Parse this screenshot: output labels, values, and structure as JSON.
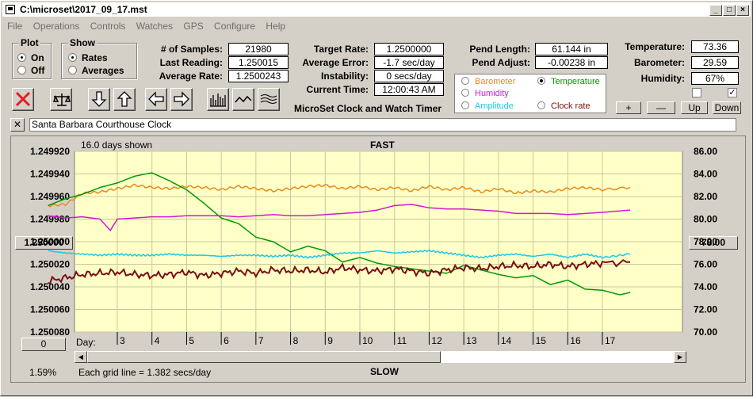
{
  "window": {
    "title": "C:\\microset\\2017_09_17.mst"
  },
  "menu": [
    "File",
    "Operations",
    "Controls",
    "Watches",
    "GPS",
    "Configure",
    "Help"
  ],
  "plot_group": {
    "title": "Plot",
    "options": [
      "On",
      "Off"
    ],
    "selected": "On"
  },
  "show_group": {
    "title": "Show",
    "options": [
      "Rates",
      "Averages"
    ],
    "selected": "Rates"
  },
  "stats": {
    "samples_label": "# of Samples:",
    "samples": "21980",
    "last_reading_label": "Last Reading:",
    "last_reading": "1.250015",
    "average_rate_label": "Average Rate:",
    "average_rate": "1.2500243"
  },
  "rates": {
    "target_rate_label": "Target Rate:",
    "target_rate": "1.2500000",
    "average_error_label": "Average Error:",
    "average_error": "-1.7 sec/day",
    "instability_label": "Instability:",
    "instability": "0 secs/day",
    "current_time_label": "Current Time:",
    "current_time": "12:00:43 AM"
  },
  "pendulum": {
    "length_label": "Pend Length:",
    "length": "61.144 in",
    "adjust_label": "Pend Adjust:",
    "adjust": "-0.00238 in"
  },
  "environment": {
    "temperature_label": "Temperature:",
    "temperature": "73.36",
    "barometer_label": "Barometer:",
    "barometer": "29.59",
    "humidity_label": "Humidity:",
    "humidity": "67%",
    "check1": false,
    "check2": true
  },
  "app_caption": "MicroSet Clock and Watch Timer",
  "legend": {
    "items": [
      {
        "label": "Barometer",
        "color": "#e88a1a",
        "selected": false
      },
      {
        "label": "Temperature",
        "color": "#009900",
        "selected": true
      },
      {
        "label": "Humidity",
        "color": "#d01ad0",
        "selected": false
      },
      {
        "label": "Amplitude",
        "color": "#19c8e8",
        "selected": false
      },
      {
        "label": "Clock rate",
        "color": "#7a1010",
        "selected": false
      }
    ]
  },
  "adjust_buttons": [
    "+",
    "—",
    "Up",
    "Down"
  ],
  "clock_name": "Santa Barbara Courthouse Clock",
  "chart_header": {
    "days_shown": "16.0 days shown",
    "fast": "FAST",
    "slow": "SLOW"
  },
  "chart_footer": {
    "grid_note": "Each grid line = 1.382 secs/day",
    "percent": "1.59%",
    "day_label": "Day:"
  },
  "left_axis_button": "1.250000",
  "right_axis_button": "78.00",
  "bottom_left_button": "0",
  "chart_data": {
    "type": "line",
    "x_tick_labels": [
      "3",
      "4",
      "5",
      "6",
      "7",
      "8",
      "9",
      "10",
      "11",
      "12",
      "13",
      "14",
      "15",
      "16",
      "17"
    ],
    "left_ticks": [
      "1.249920",
      "1.249940",
      "1.249960",
      "1.249980",
      "1.250000",
      "1.250020",
      "1.250040",
      "1.250060",
      "1.250080"
    ],
    "left_ylim": [
      1.24992,
      1.25008
    ],
    "left_inverted": true,
    "right_ticks": [
      "86.00",
      "84.00",
      "82.00",
      "80.00",
      "78.00",
      "76.00",
      "74.00",
      "72.00",
      "70.00"
    ],
    "right_ylim": [
      70,
      86
    ],
    "series": [
      {
        "name": "Barometer",
        "color": "#e88a1a",
        "axis": "right",
        "x": [
          1.0,
          1.5,
          2.0,
          2.5,
          3.0,
          3.5,
          4.0,
          4.5,
          5.0,
          5.5,
          6.0,
          6.5,
          7.0,
          7.5,
          8.0,
          8.5,
          9.0,
          9.5,
          10.0,
          10.5,
          11.0,
          11.5,
          12.0,
          12.5,
          13.0,
          13.5,
          14.0,
          14.5,
          15.0,
          15.5,
          16.0,
          16.5,
          17.0,
          17.8
        ],
        "values": [
          81.2,
          81.3,
          82.3,
          82.4,
          82.7,
          83.0,
          82.8,
          82.7,
          82.9,
          82.8,
          82.6,
          82.9,
          82.7,
          82.5,
          82.7,
          82.9,
          83.0,
          82.7,
          82.9,
          82.6,
          82.8,
          82.5,
          82.9,
          82.6,
          82.8,
          82.4,
          82.7,
          82.3,
          82.5,
          82.4,
          82.7,
          82.8,
          82.6,
          82.8
        ]
      },
      {
        "name": "Temperature",
        "color": "#009900",
        "axis": "right",
        "x": [
          1.0,
          1.5,
          2.0,
          2.5,
          3.0,
          3.5,
          4.0,
          4.5,
          5.0,
          5.5,
          6.0,
          6.5,
          7.0,
          7.5,
          8.0,
          8.5,
          9.0,
          9.5,
          10.0,
          10.5,
          11.0,
          11.5,
          12.0,
          12.5,
          13.0,
          13.5,
          14.0,
          14.5,
          15.0,
          15.5,
          16.0,
          16.5,
          17.0,
          17.5,
          17.8
        ],
        "values": [
          81.2,
          81.8,
          82.2,
          82.8,
          83.2,
          83.8,
          84.1,
          83.4,
          82.6,
          81.4,
          80.1,
          79.6,
          78.4,
          78.0,
          77.1,
          77.6,
          77.2,
          76.2,
          76.6,
          76.1,
          75.8,
          75.6,
          75.4,
          75.2,
          75.9,
          75.5,
          75.1,
          74.8,
          75.0,
          74.2,
          74.6,
          73.8,
          73.7,
          73.3,
          73.5
        ]
      },
      {
        "name": "Humidity",
        "color": "#d01ad0",
        "axis": "right",
        "x": [
          1.0,
          1.5,
          2.0,
          2.5,
          2.8,
          3.0,
          3.5,
          4.0,
          4.5,
          5.0,
          5.5,
          6.0,
          6.5,
          7.0,
          7.5,
          8.0,
          8.5,
          9.0,
          9.5,
          10.0,
          10.5,
          11.0,
          11.5,
          12.0,
          12.5,
          13.0,
          13.5,
          14.0,
          14.5,
          15.0,
          15.5,
          16.0,
          16.5,
          17.0,
          17.8
        ],
        "values": [
          80.3,
          80.1,
          80.2,
          80.0,
          79.0,
          80.0,
          80.1,
          80.2,
          80.2,
          80.3,
          80.3,
          80.3,
          80.2,
          80.3,
          80.4,
          80.3,
          80.3,
          80.4,
          80.5,
          80.6,
          80.8,
          81.2,
          81.3,
          81.0,
          80.9,
          80.9,
          80.8,
          80.7,
          80.5,
          80.5,
          80.5,
          80.4,
          80.5,
          80.6,
          80.8
        ]
      },
      {
        "name": "Amplitude",
        "color": "#19c8e8",
        "axis": "right",
        "x": [
          1.0,
          1.5,
          2.0,
          2.5,
          3.0,
          3.5,
          4.0,
          4.5,
          5.0,
          5.5,
          6.0,
          6.5,
          7.0,
          7.5,
          8.0,
          8.5,
          9.0,
          9.5,
          10.0,
          10.5,
          11.0,
          11.5,
          12.0,
          12.5,
          13.0,
          13.5,
          14.0,
          14.5,
          15.0,
          15.5,
          16.0,
          16.5,
          17.0,
          17.8
        ],
        "values": [
          77.2,
          77.0,
          76.9,
          76.8,
          76.9,
          76.8,
          76.8,
          76.9,
          76.8,
          76.8,
          76.7,
          76.8,
          76.8,
          76.7,
          76.8,
          76.6,
          76.8,
          77.0,
          77.0,
          77.2,
          77.0,
          77.1,
          77.2,
          77.0,
          76.8,
          76.6,
          76.8,
          76.9,
          76.7,
          76.9,
          76.6,
          76.9,
          76.6,
          76.9
        ]
      },
      {
        "name": "Clock rate",
        "color": "#7a1010",
        "axis": "left",
        "x": [
          1.0,
          1.5,
          2.0,
          2.5,
          3.0,
          3.5,
          4.0,
          4.5,
          5.0,
          5.5,
          6.0,
          6.5,
          7.0,
          7.5,
          8.0,
          8.5,
          9.0,
          9.5,
          10.0,
          10.5,
          11.0,
          11.5,
          12.0,
          12.5,
          13.0,
          13.5,
          14.0,
          14.5,
          15.0,
          15.5,
          16.0,
          16.5,
          17.0,
          17.8
        ],
        "values": [
          1.250035,
          1.250032,
          1.250029,
          1.250028,
          1.250027,
          1.250029,
          1.25003,
          1.250029,
          1.250027,
          1.25003,
          1.250028,
          1.250026,
          1.250028,
          1.250025,
          1.250026,
          1.250025,
          1.250027,
          1.250023,
          1.250025,
          1.250026,
          1.250024,
          1.250026,
          1.250028,
          1.250025,
          1.250023,
          1.250024,
          1.250022,
          1.250021,
          1.250022,
          1.25002,
          1.250022,
          1.25002,
          1.250019,
          1.250018
        ]
      }
    ]
  }
}
